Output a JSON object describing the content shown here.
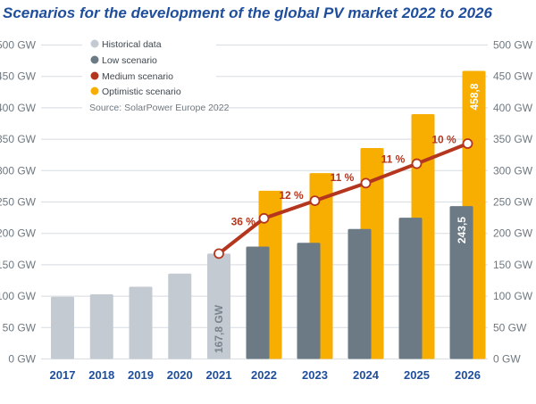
{
  "chart_data": {
    "type": "bar",
    "title": "Scenarios for the development of the global PV market 2022 to 2026",
    "source": "Source: SolarPower Europe 2022",
    "categories": [
      "2017",
      "2018",
      "2019",
      "2020",
      "2021",
      "2022",
      "2023",
      "2024",
      "2025",
      "2026"
    ],
    "y_ticks": [
      "0 GW",
      "50 GW",
      "100 GW",
      "150 GW",
      "200 GW",
      "250 GW",
      "300 GW",
      "350 GW",
      "400 GW",
      "450 GW",
      "500 GW"
    ],
    "ylim": [
      0,
      500
    ],
    "unit": "GW",
    "grid": true,
    "legend_position": "top-left",
    "colors": {
      "historical": "#c3cad1",
      "low": "#6b7a85",
      "medium": "#b5361e",
      "optimistic": "#f7ae00",
      "title": "#1f4e9c"
    },
    "series": [
      {
        "name": "Historical data",
        "type": "bar",
        "values": [
          99,
          103,
          115,
          136,
          167.8,
          null,
          null,
          null,
          null,
          null
        ]
      },
      {
        "name": "Low scenario",
        "type": "bar",
        "values": [
          null,
          null,
          null,
          null,
          null,
          179,
          185,
          207,
          225,
          243.5
        ]
      },
      {
        "name": "Medium scenario",
        "type": "line",
        "values": [
          null,
          null,
          null,
          null,
          167.8,
          224,
          252,
          280,
          311,
          343
        ]
      },
      {
        "name": "Optimistic scenario",
        "type": "bar",
        "values": [
          null,
          null,
          null,
          null,
          null,
          268,
          296,
          336,
          390,
          458.8
        ]
      }
    ],
    "growth_labels": [
      "36 %",
      "12 %",
      "11 %",
      "11 %",
      "10 %"
    ],
    "data_labels": {
      "historical_2021": "167,8 GW",
      "low_2026": "243,5",
      "optimistic_2026": "458,8"
    }
  }
}
